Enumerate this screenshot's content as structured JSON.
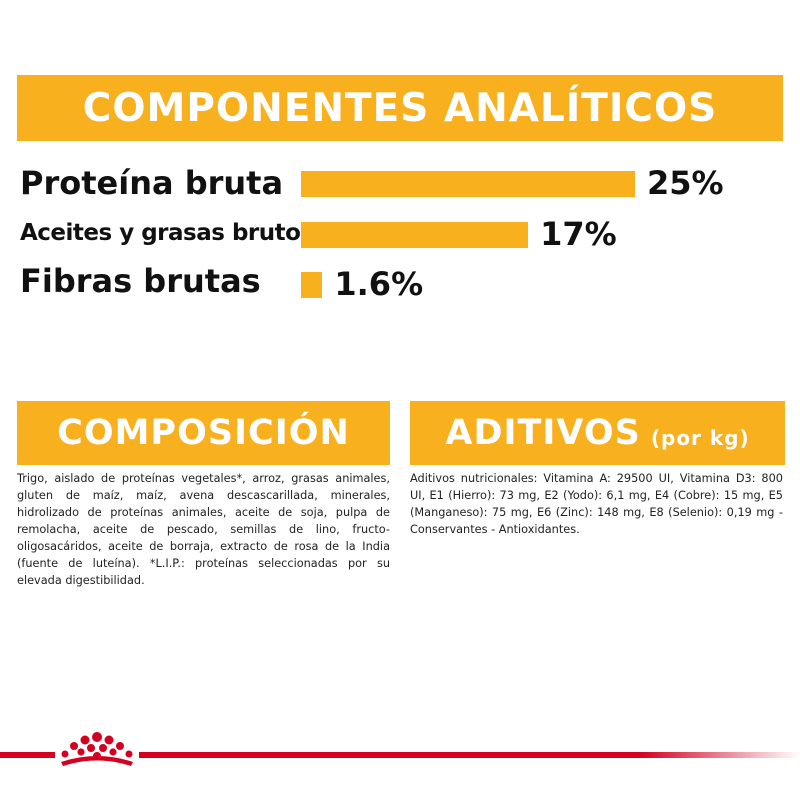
{
  "colors": {
    "accent": "#f8b01e",
    "brand_red": "#d4001f",
    "text": "#111111"
  },
  "analytics": {
    "title": "COMPONENTES ANALÍTICOS",
    "rows": [
      {
        "label": "Proteína bruta",
        "value": 25,
        "value_label": "25%"
      },
      {
        "label": "Aceites y grasas brutos",
        "value": 17,
        "value_label": "17%"
      },
      {
        "label": "Fibras brutas",
        "value": 1.6,
        "value_label": "1.6%"
      }
    ]
  },
  "composition": {
    "title": "COMPOSICIÓN",
    "text": "Trigo, aislado de proteínas vegetales*, arroz, grasas animales, gluten de maíz, maíz, avena descascarillada, minerales, hidrolizado de proteínas animales, aceite de soja, pulpa de remolacha, aceite de pescado, semillas de lino, fructo-oligosacáridos, aceite de borraja, extracto de rosa de la India (fuente de luteína). *L.I.P.: proteínas seleccionadas por su elevada digestibilidad."
  },
  "additives": {
    "title": "ADITIVOS",
    "subtitle": "(por kg)",
    "text": "Aditivos nutricionales: Vitamina A: 29500 UI, Vitamina D3: 800 UI, E1 (Hierro): 73 mg, E2 (Yodo): 6,1 mg, E4 (Cobre): 15 mg, E5 (Manganeso): 75 mg, E6 (Zinc): 148 mg, E8 (Selenio): 0,19 mg - Conservantes - Antioxidantes."
  },
  "footer": {
    "logo_icon": "royal-canin-crown-icon"
  }
}
